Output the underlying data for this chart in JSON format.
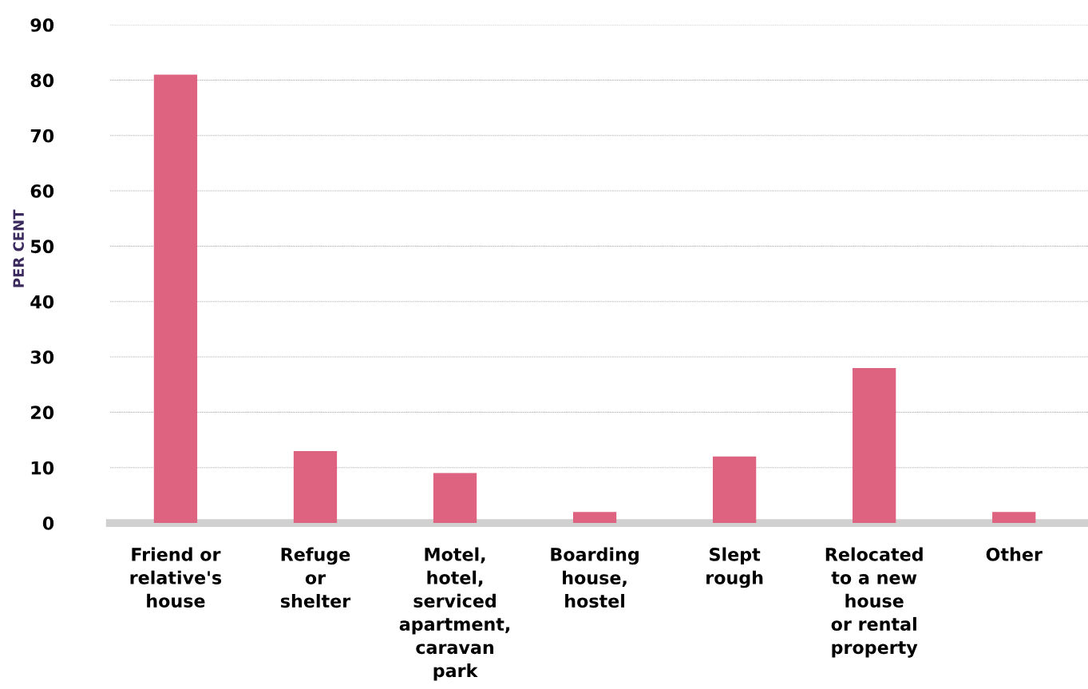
{
  "chart_data": {
    "type": "bar",
    "ylabel": "PER CENT",
    "categories": [
      "Friend or\nrelative's\nhouse",
      "Refuge\nor\nshelter",
      "Motel,\nhotel,\nserviced\napartment,\ncaravan\npark",
      "Boarding\nhouse,\nhostel",
      "Slept\nrough",
      "Relocated\nto a new\nhouse\nor rental\nproperty",
      "Other"
    ],
    "values": [
      81,
      13,
      9,
      2,
      12,
      28,
      2
    ],
    "color": "#de6380",
    "ylim": [
      0,
      90
    ],
    "yticks": [
      0,
      10,
      20,
      30,
      40,
      50,
      60,
      70,
      80,
      90
    ],
    "grid": "y",
    "legend": false
  }
}
